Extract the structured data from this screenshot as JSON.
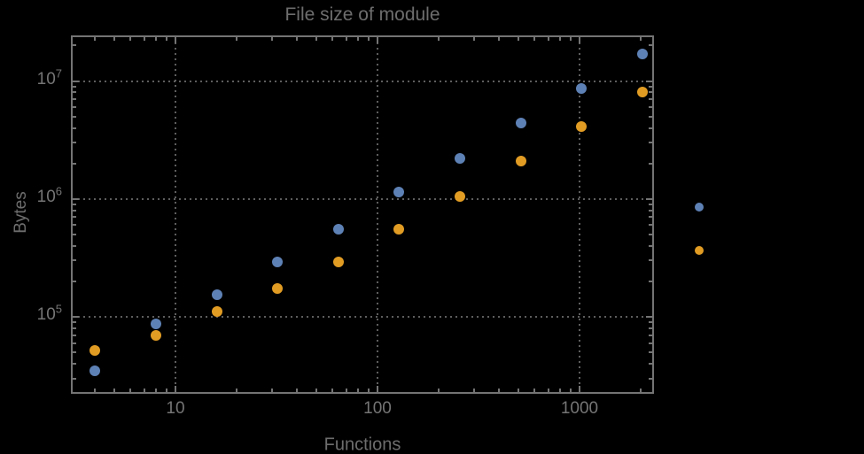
{
  "page": {
    "background_color": "#000000",
    "text_color": "#6d6d6d"
  },
  "chart": {
    "title": "File size of module",
    "xlabel": "Functions",
    "ylabel": "Bytes",
    "frame_color": "#747474",
    "grid_color": "#5e5e5e",
    "x_ticks": [
      {
        "label": "10",
        "value": 10
      },
      {
        "label": "100",
        "value": 100
      },
      {
        "label": "1000",
        "value": 1000
      }
    ],
    "y_ticks": [
      {
        "base": "10",
        "exp": "5",
        "value": 100000
      },
      {
        "base": "10",
        "exp": "6",
        "value": 1000000
      },
      {
        "base": "10",
        "exp": "7",
        "value": 10000000
      }
    ]
  },
  "chart_data": {
    "type": "scatter",
    "title": "File size of module",
    "xlabel": "Functions",
    "ylabel": "Bytes",
    "x_scale": "log",
    "y_scale": "log",
    "xlim": [
      3,
      2340
    ],
    "ylim": [
      22000,
      25000000
    ],
    "grid": "dotted",
    "x": [
      4,
      8,
      16,
      32,
      64,
      128,
      256,
      512,
      1024,
      2048
    ],
    "series": [
      {
        "name": "series-1-blue",
        "color": "#5e81b5",
        "values": [
          35000,
          87000,
          155000,
          290000,
          550000,
          1150000,
          2200000,
          4400000,
          8600000,
          17000000
        ]
      },
      {
        "name": "series-2-orange",
        "color": "#e19c24",
        "values": [
          52000,
          70000,
          110000,
          175000,
          290000,
          550000,
          1050000,
          2100000,
          4100000,
          8100000
        ]
      }
    ],
    "legend": {
      "position": "right-of-frame",
      "labels_visible": false,
      "marker_colors": [
        "#5e81b5",
        "#e19c24"
      ]
    }
  }
}
